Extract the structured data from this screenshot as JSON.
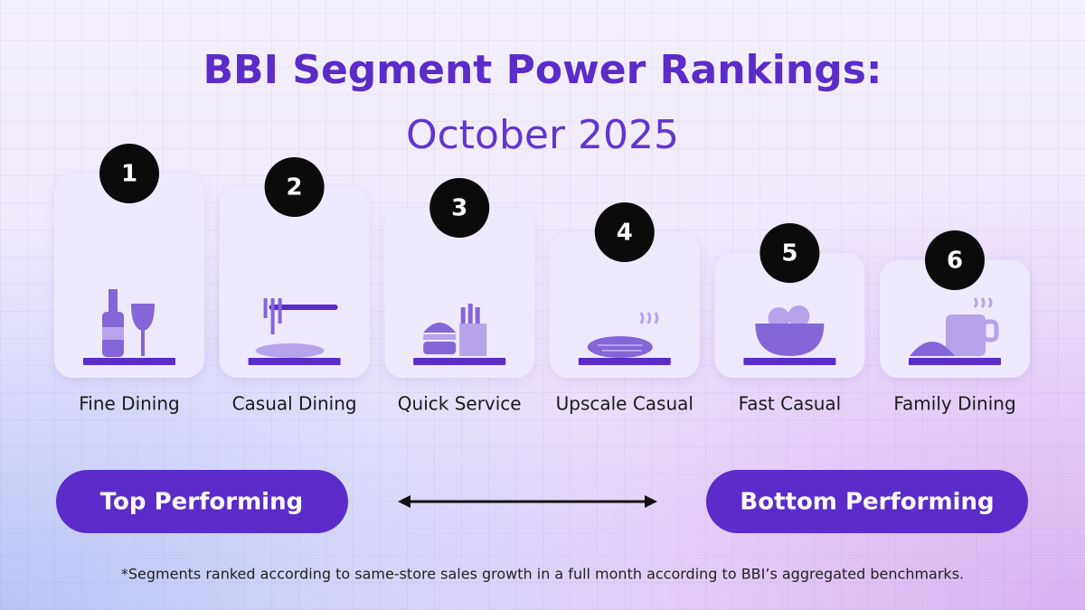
{
  "title": "BBI Segment Power Rankings:",
  "subtitle": "October 2025",
  "segments": [
    {
      "rank": 1,
      "label": "Fine Dining"
    },
    {
      "rank": 2,
      "label": "Casual Dining"
    },
    {
      "rank": 3,
      "label": "Quick Service"
    },
    {
      "rank": 4,
      "label": "Upscale Casual"
    },
    {
      "rank": 5,
      "label": "Fast Casual"
    },
    {
      "rank": 6,
      "label": "Family Dining"
    }
  ],
  "scale": {
    "left": "Top Performing",
    "right": "Bottom Performing"
  },
  "footnote": "*Segments ranked according to same-store sales growth in a full month according to BBI’s aggregated benchmarks."
}
